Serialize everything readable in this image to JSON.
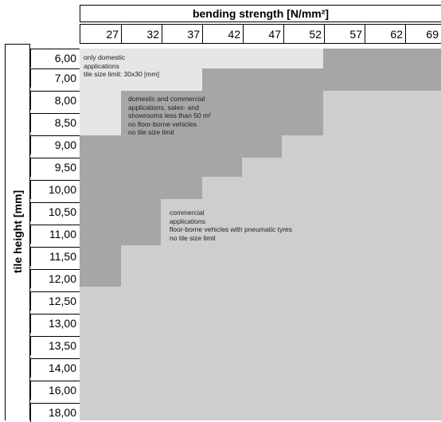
{
  "chart": {
    "title": "bending strength [N/mm²]",
    "ylabel": "tile height [mm]",
    "columns": [
      "27",
      "32",
      "37",
      "42",
      "47",
      "52",
      "57",
      "62",
      "69"
    ],
    "rows": [
      "6,00",
      "7,00",
      "8,00",
      "8,50",
      "9,00",
      "9,50",
      "10,00",
      "10,50",
      "11,00",
      "11,50",
      "12,00",
      "12,50",
      "13,00",
      "13,50",
      "14,00",
      "16,00",
      "18,00"
    ]
  },
  "zones": {
    "domestic_only": "only domestic\napplications\ntile size limit: 30x30 [mm]",
    "domestic_commercial": "domestic and commercial\napplications, sales- and\nshowrooms less than 50 m²\nno floor-borne vehicles\nno tile size limit",
    "commercial": "commercial\napplications\nfloor-borne vehicles with pneumatic tyres\nno tile size limit"
  },
  "colors": {
    "domestic_only": "#e6e6e6",
    "domestic_commercial": "#a6a6a6",
    "commercial": "#cecece"
  }
}
